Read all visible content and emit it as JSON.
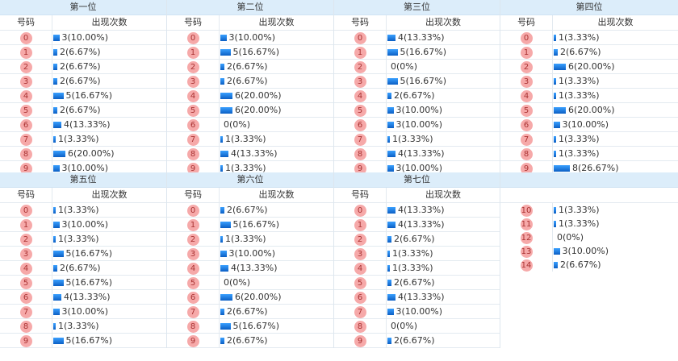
{
  "colors": {
    "header_bg": "#dcedfa",
    "ball": "#f6a9a9",
    "bar": "#1a78e0"
  },
  "col_number": "号码",
  "col_count": "出现次数",
  "sections": [
    {
      "blocks": [
        {
          "title": "第一位",
          "rows": [
            {
              "n": "0",
              "c": 3,
              "t": "3(10.00%)"
            },
            {
              "n": "1",
              "c": 2,
              "t": "2(6.67%)"
            },
            {
              "n": "2",
              "c": 2,
              "t": "2(6.67%)"
            },
            {
              "n": "3",
              "c": 2,
              "t": "2(6.67%)"
            },
            {
              "n": "4",
              "c": 5,
              "t": "5(16.67%)"
            },
            {
              "n": "5",
              "c": 2,
              "t": "2(6.67%)"
            },
            {
              "n": "6",
              "c": 4,
              "t": "4(13.33%)"
            },
            {
              "n": "7",
              "c": 1,
              "t": "1(3.33%)"
            },
            {
              "n": "8",
              "c": 6,
              "t": "6(20.00%)"
            },
            {
              "n": "9",
              "c": 3,
              "t": "3(10.00%)"
            }
          ]
        },
        {
          "title": "第二位",
          "rows": [
            {
              "n": "0",
              "c": 3,
              "t": "3(10.00%)"
            },
            {
              "n": "1",
              "c": 5,
              "t": "5(16.67%)"
            },
            {
              "n": "2",
              "c": 2,
              "t": "2(6.67%)"
            },
            {
              "n": "3",
              "c": 2,
              "t": "2(6.67%)"
            },
            {
              "n": "4",
              "c": 6,
              "t": "6(20.00%)"
            },
            {
              "n": "5",
              "c": 6,
              "t": "6(20.00%)"
            },
            {
              "n": "6",
              "c": 0,
              "t": "0(0%)"
            },
            {
              "n": "7",
              "c": 1,
              "t": "1(3.33%)"
            },
            {
              "n": "8",
              "c": 4,
              "t": "4(13.33%)"
            },
            {
              "n": "9",
              "c": 1,
              "t": "1(3.33%)"
            }
          ]
        },
        {
          "title": "第三位",
          "rows": [
            {
              "n": "0",
              "c": 4,
              "t": "4(13.33%)"
            },
            {
              "n": "1",
              "c": 5,
              "t": "5(16.67%)"
            },
            {
              "n": "2",
              "c": 0,
              "t": "0(0%)"
            },
            {
              "n": "3",
              "c": 5,
              "t": "5(16.67%)"
            },
            {
              "n": "4",
              "c": 2,
              "t": "2(6.67%)"
            },
            {
              "n": "5",
              "c": 3,
              "t": "3(10.00%)"
            },
            {
              "n": "6",
              "c": 3,
              "t": "3(10.00%)"
            },
            {
              "n": "7",
              "c": 1,
              "t": "1(3.33%)"
            },
            {
              "n": "8",
              "c": 4,
              "t": "4(13.33%)"
            },
            {
              "n": "9",
              "c": 3,
              "t": "3(10.00%)"
            }
          ]
        },
        {
          "title": "第四位",
          "rows": [
            {
              "n": "0",
              "c": 1,
              "t": "1(3.33%)"
            },
            {
              "n": "1",
              "c": 2,
              "t": "2(6.67%)"
            },
            {
              "n": "2",
              "c": 6,
              "t": "6(20.00%)"
            },
            {
              "n": "3",
              "c": 1,
              "t": "1(3.33%)"
            },
            {
              "n": "4",
              "c": 1,
              "t": "1(3.33%)"
            },
            {
              "n": "5",
              "c": 6,
              "t": "6(20.00%)"
            },
            {
              "n": "6",
              "c": 3,
              "t": "3(10.00%)"
            },
            {
              "n": "7",
              "c": 1,
              "t": "1(3.33%)"
            },
            {
              "n": "8",
              "c": 1,
              "t": "1(3.33%)"
            },
            {
              "n": "9",
              "c": 8,
              "t": "8(26.67%)"
            }
          ]
        }
      ]
    },
    {
      "blocks": [
        {
          "title": "第五位",
          "rows": [
            {
              "n": "0",
              "c": 1,
              "t": "1(3.33%)"
            },
            {
              "n": "1",
              "c": 3,
              "t": "3(10.00%)"
            },
            {
              "n": "2",
              "c": 1,
              "t": "1(3.33%)"
            },
            {
              "n": "3",
              "c": 5,
              "t": "5(16.67%)"
            },
            {
              "n": "4",
              "c": 2,
              "t": "2(6.67%)"
            },
            {
              "n": "5",
              "c": 5,
              "t": "5(16.67%)"
            },
            {
              "n": "6",
              "c": 4,
              "t": "4(13.33%)"
            },
            {
              "n": "7",
              "c": 3,
              "t": "3(10.00%)"
            },
            {
              "n": "8",
              "c": 1,
              "t": "1(3.33%)"
            },
            {
              "n": "9",
              "c": 5,
              "t": "5(16.67%)"
            }
          ]
        },
        {
          "title": "第六位",
          "rows": [
            {
              "n": "0",
              "c": 2,
              "t": "2(6.67%)"
            },
            {
              "n": "1",
              "c": 5,
              "t": "5(16.67%)"
            },
            {
              "n": "2",
              "c": 1,
              "t": "1(3.33%)"
            },
            {
              "n": "3",
              "c": 3,
              "t": "3(10.00%)"
            },
            {
              "n": "4",
              "c": 4,
              "t": "4(13.33%)"
            },
            {
              "n": "5",
              "c": 0,
              "t": "0(0%)"
            },
            {
              "n": "6",
              "c": 6,
              "t": "6(20.00%)"
            },
            {
              "n": "7",
              "c": 2,
              "t": "2(6.67%)"
            },
            {
              "n": "8",
              "c": 5,
              "t": "5(16.67%)"
            },
            {
              "n": "9",
              "c": 2,
              "t": "2(6.67%)"
            }
          ]
        },
        {
          "title": "第七位",
          "rows": [
            {
              "n": "0",
              "c": 4,
              "t": "4(13.33%)"
            },
            {
              "n": "1",
              "c": 4,
              "t": "4(13.33%)"
            },
            {
              "n": "2",
              "c": 2,
              "t": "2(6.67%)"
            },
            {
              "n": "3",
              "c": 1,
              "t": "1(3.33%)"
            },
            {
              "n": "4",
              "c": 1,
              "t": "1(3.33%)"
            },
            {
              "n": "5",
              "c": 2,
              "t": "2(6.67%)"
            },
            {
              "n": "6",
              "c": 4,
              "t": "4(13.33%)"
            },
            {
              "n": "7",
              "c": 3,
              "t": "3(10.00%)"
            },
            {
              "n": "8",
              "c": 0,
              "t": "0(0%)"
            },
            {
              "n": "9",
              "c": 2,
              "t": "2(6.67%)"
            }
          ]
        },
        {
          "title": "",
          "noSub": true,
          "rows": [
            {
              "n": "10",
              "c": 1,
              "t": "1(3.33%)"
            },
            {
              "n": "11",
              "c": 1,
              "t": "1(3.33%)"
            },
            {
              "n": "12",
              "c": 0,
              "t": "0(0%)"
            },
            {
              "n": "13",
              "c": 3,
              "t": "3(10.00%)"
            },
            {
              "n": "14",
              "c": 2,
              "t": "2(6.67%)"
            }
          ]
        }
      ]
    }
  ]
}
